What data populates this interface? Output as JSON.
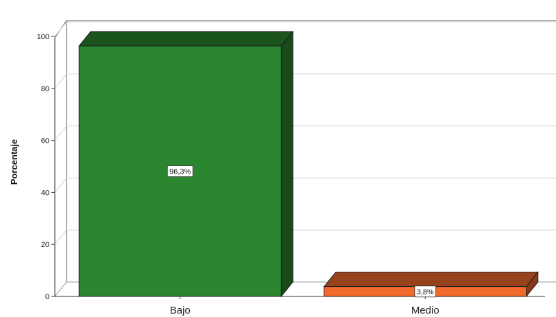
{
  "chart_data": {
    "type": "bar",
    "style": "3d",
    "categories": [
      "Bajo",
      "Medio"
    ],
    "values": [
      96.3,
      3.8
    ],
    "data_labels": [
      "96,3%",
      "3,8%"
    ],
    "colors": [
      "#2b872f",
      "#f26b2c"
    ],
    "ylabel": "Porcentaje",
    "ylim": [
      0,
      100
    ],
    "yticks": [
      "0",
      "20",
      "40",
      "60",
      "80",
      "100"
    ],
    "grid": true,
    "legend": "none"
  }
}
